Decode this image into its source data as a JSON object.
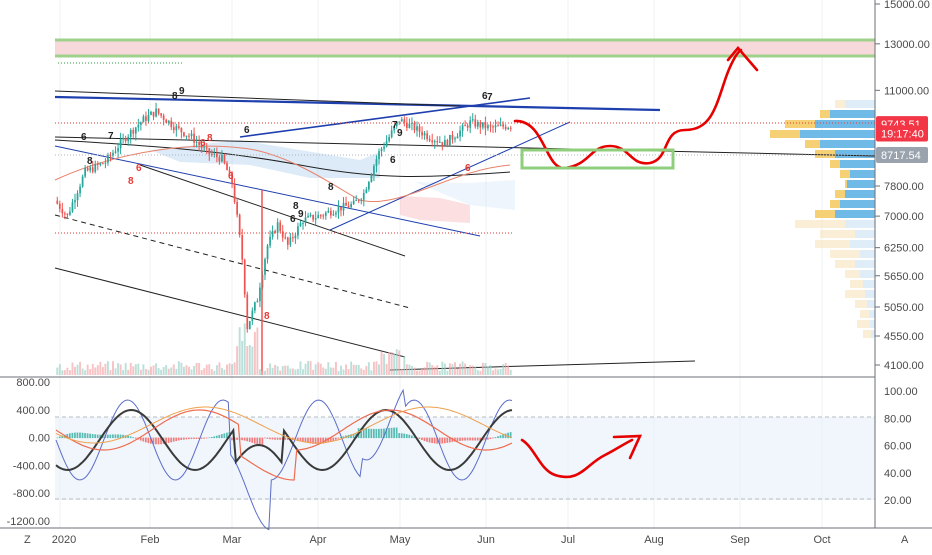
{
  "chart_data": [
    {
      "type": "candlestick",
      "panel": "price",
      "title": "",
      "yaxis_ticks": [
        "15000.00",
        "13000.00",
        "11000.00",
        "7800.00",
        "7000.00",
        "6250.00",
        "5650.00",
        "5050.00",
        "4550.00",
        "4100.00"
      ],
      "yaxis_values": [
        15000,
        13000,
        11000,
        7800,
        7000,
        6250,
        5650,
        5050,
        4550,
        4100
      ],
      "yaxis_scale": "log",
      "ylim": [
        3950,
        16200
      ],
      "badges": [
        {
          "text": "9743.51",
          "value": 9743.51,
          "color": "#f23645"
        },
        {
          "text": "19:17:40",
          "value": 9420,
          "color": "#f23645"
        },
        {
          "text": "8717.54",
          "value": 8717.54,
          "color": "#9aa3ad"
        }
      ],
      "x_labels": [
        "2020",
        "Feb",
        "Mar",
        "Apr",
        "May",
        "Jun",
        "Jul",
        "Aug",
        "Sep",
        "Oct"
      ],
      "td_annotations": {
        "green": [
          "6",
          "7",
          "8",
          "9",
          "8",
          "8",
          "6",
          "7",
          "8",
          "6",
          "7",
          "8",
          "9",
          "7",
          "8",
          "9",
          "7"
        ],
        "red": [
          "6",
          "8",
          "6",
          "7",
          "6",
          "8",
          "6",
          "8"
        ]
      },
      "colors": {
        "up": "#26a69a",
        "down": "#ef5350",
        "trend": "#1e3fae",
        "forecast": "#e60000",
        "zone_red": "#f7d9dc",
        "zone_green": "#9fd18b"
      }
    },
    {
      "type": "line",
      "panel": "oscillator",
      "left_ticks": [
        "800.00",
        "400.00",
        "0.00",
        "-400.00",
        "-800.00",
        "-1200.00"
      ],
      "left_values": [
        800,
        400,
        0,
        -400,
        -800,
        -1200
      ],
      "right_ticks": [
        "100.00",
        "80.00",
        "60.00",
        "40.00",
        "20.00"
      ],
      "right_values": [
        100,
        80,
        60,
        40,
        20
      ],
      "dashed_levels": [
        80,
        20
      ]
    }
  ],
  "bottom_bar": {
    "left": "Z",
    "right": "A"
  }
}
